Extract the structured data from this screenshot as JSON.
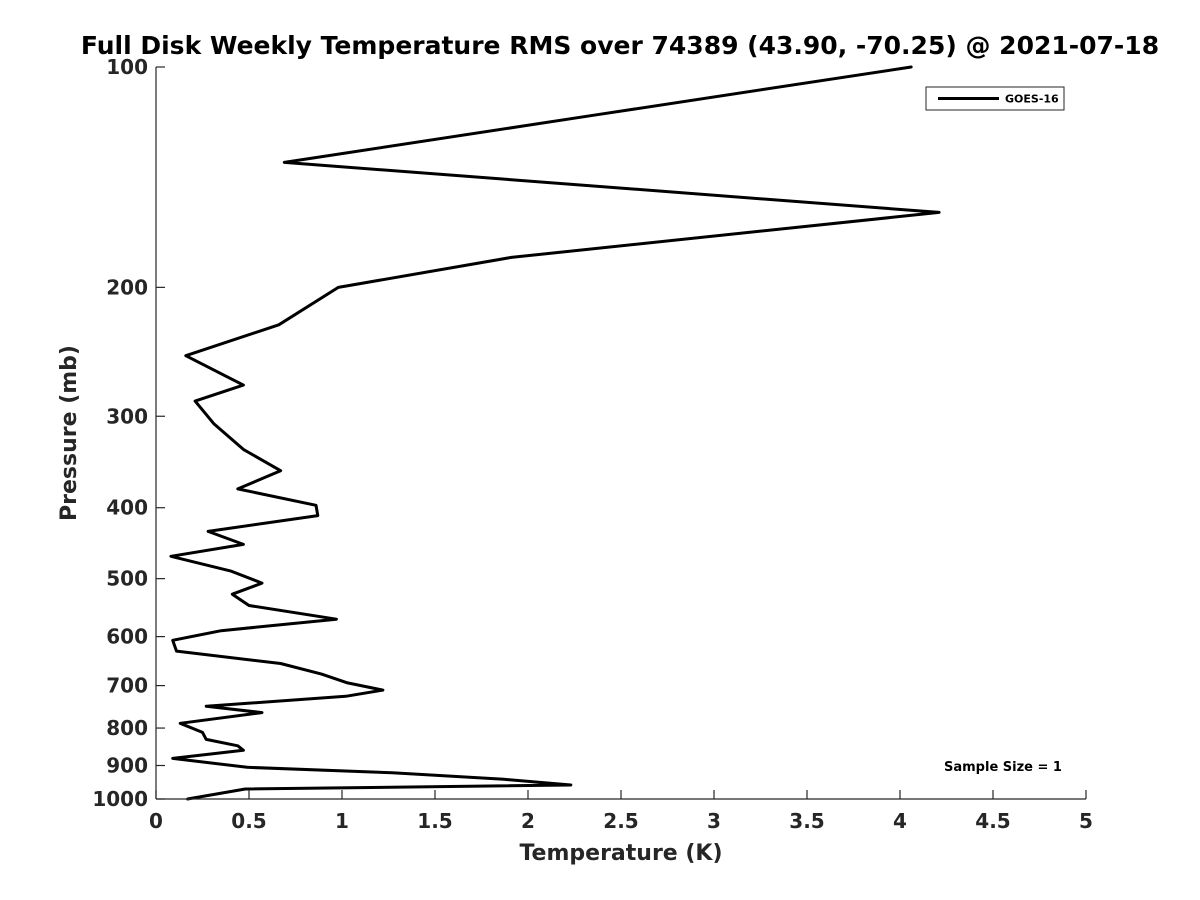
{
  "chart_data": {
    "type": "line",
    "title": "Full Disk Weekly Temperature RMS over 74389 (43.90, -70.25) @ 2021-07-18",
    "xlabel": "Temperature (K)",
    "ylabel": "Pressure (mb)",
    "xlim": [
      0,
      5
    ],
    "ylim": [
      100,
      1000
    ],
    "y_scale": "log",
    "y_reversed": true,
    "grid": false,
    "xticks": [
      0,
      0.5,
      1,
      1.5,
      2,
      2.5,
      3,
      3.5,
      4,
      4.5,
      5
    ],
    "xtick_labels": [
      "0",
      "0.5",
      "1",
      "1.5",
      "2",
      "2.5",
      "3",
      "3.5",
      "4",
      "4.5",
      "5"
    ],
    "yticks": [
      100,
      200,
      300,
      400,
      500,
      600,
      700,
      800,
      900,
      1000
    ],
    "ytick_labels": [
      "100",
      "200",
      "300",
      "400",
      "500",
      "600",
      "700",
      "800",
      "900",
      "1000"
    ],
    "legend_position": "top-right",
    "annotation": "Sample Size = 1",
    "series": [
      {
        "name": "GOES-16",
        "color": "#000000",
        "points": [
          [
            4.06,
            100
          ],
          [
            2.39,
            116
          ],
          [
            0.69,
            135
          ],
          [
            4.21,
            158
          ],
          [
            1.91,
            182
          ],
          [
            0.98,
            200
          ],
          [
            0.66,
            225
          ],
          [
            0.16,
            248
          ],
          [
            0.47,
            272
          ],
          [
            0.21,
            286
          ],
          [
            0.31,
            307
          ],
          [
            0.47,
            333
          ],
          [
            0.67,
            356
          ],
          [
            0.44,
            377
          ],
          [
            0.86,
            397
          ],
          [
            0.87,
            410
          ],
          [
            0.28,
            431
          ],
          [
            0.47,
            449
          ],
          [
            0.08,
            466
          ],
          [
            0.4,
            488
          ],
          [
            0.57,
            507
          ],
          [
            0.41,
            525
          ],
          [
            0.5,
            544
          ],
          [
            0.97,
            568
          ],
          [
            0.35,
            589
          ],
          [
            0.09,
            607
          ],
          [
            0.11,
            628
          ],
          [
            0.67,
            653
          ],
          [
            0.89,
            675
          ],
          [
            1.03,
            694
          ],
          [
            1.22,
            710
          ],
          [
            1.02,
            724
          ],
          [
            0.27,
            747
          ],
          [
            0.57,
            762
          ],
          [
            0.13,
            788
          ],
          [
            0.25,
            811
          ],
          [
            0.27,
            829
          ],
          [
            0.44,
            846
          ],
          [
            0.47,
            858
          ],
          [
            0.09,
            880
          ],
          [
            0.49,
            905
          ],
          [
            1.27,
            921
          ],
          [
            1.87,
            940
          ],
          [
            2.23,
            957
          ],
          [
            0.48,
            969
          ],
          [
            0.17,
            1000
          ]
        ]
      }
    ]
  }
}
